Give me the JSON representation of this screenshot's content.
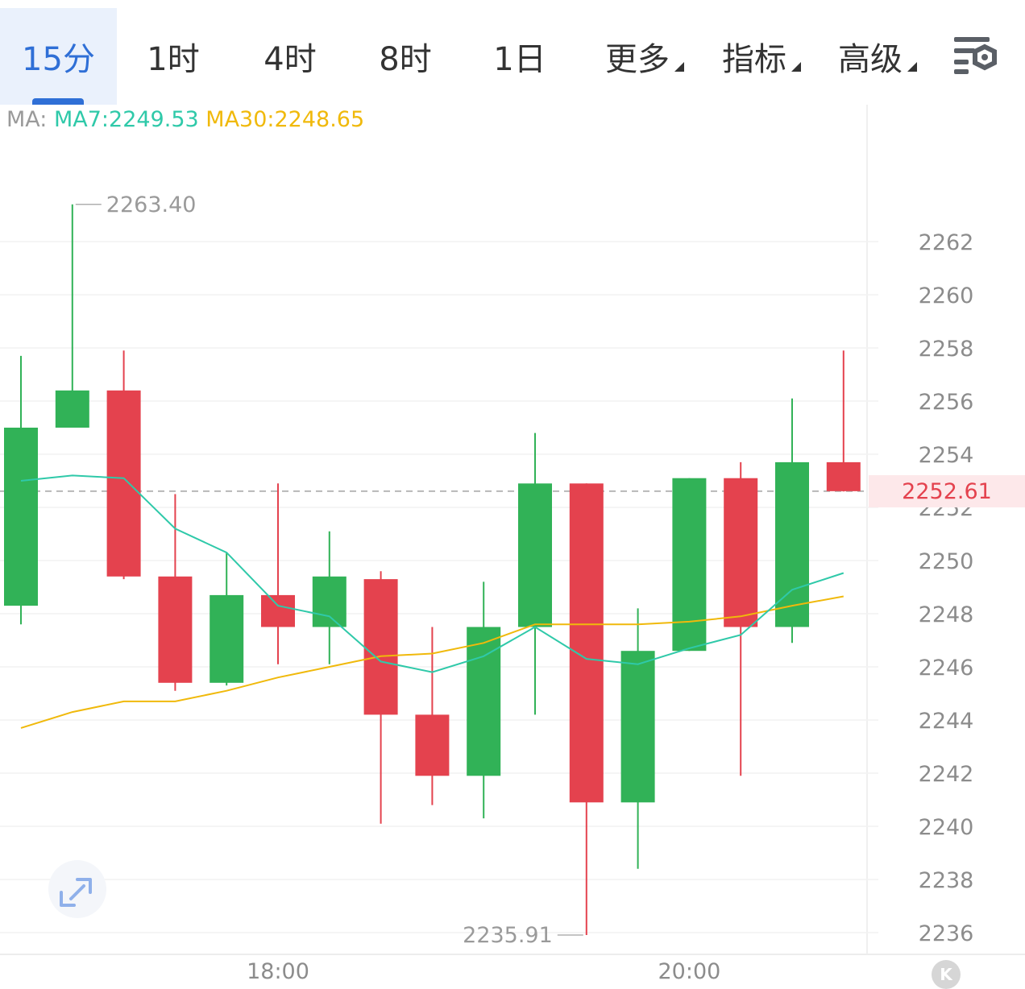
{
  "tabs": [
    {
      "label": "15分",
      "active": true
    },
    {
      "label": "1时"
    },
    {
      "label": "4时"
    },
    {
      "label": "8时"
    },
    {
      "label": "1日"
    },
    {
      "label": "更多",
      "dropdown": true
    },
    {
      "label": "指标",
      "dropdown": true
    },
    {
      "label": "高级",
      "dropdown": true
    }
  ],
  "settings_icon": "chart-settings-icon",
  "ma_legend": {
    "prefix": "MA:",
    "ma7": "MA7:2249.53",
    "ma30": "MA30:2248.65"
  },
  "current_price": "2252.61",
  "high_marker": "2263.40",
  "low_marker": "2235.91",
  "colors": {
    "up": "#31b257",
    "down": "#e4424e",
    "ma7": "#2fc9a9",
    "ma30": "#f0b90b",
    "accent": "#2f6fd6"
  },
  "k_logo": "K",
  "chart_data": {
    "type": "candlestick",
    "y_ticks": [
      2262,
      2260,
      2258,
      2256,
      2254,
      2252,
      2250,
      2248,
      2246,
      2244,
      2242,
      2240,
      2238,
      2236
    ],
    "x_labels": [
      {
        "label": "18:00",
        "index": 5
      },
      {
        "label": "20:00",
        "index": 13
      }
    ],
    "candles": [
      {
        "open": 2248.3,
        "high": 2257.7,
        "low": 2247.6,
        "close": 2255.0
      },
      {
        "open": 2255.0,
        "high": 2263.4,
        "low": 2255.0,
        "close": 2256.4
      },
      {
        "open": 2256.4,
        "high": 2257.9,
        "low": 2249.3,
        "close": 2249.4
      },
      {
        "open": 2249.4,
        "high": 2252.5,
        "low": 2245.1,
        "close": 2245.4
      },
      {
        "open": 2245.4,
        "high": 2250.3,
        "low": 2245.3,
        "close": 2248.7
      },
      {
        "open": 2248.7,
        "high": 2252.9,
        "low": 2246.1,
        "close": 2247.5
      },
      {
        "open": 2247.5,
        "high": 2251.1,
        "low": 2246.1,
        "close": 2249.4
      },
      {
        "open": 2249.3,
        "high": 2249.6,
        "low": 2240.1,
        "close": 2244.2
      },
      {
        "open": 2244.2,
        "high": 2247.5,
        "low": 2240.8,
        "close": 2241.9
      },
      {
        "open": 2241.9,
        "high": 2249.2,
        "low": 2240.3,
        "close": 2247.5
      },
      {
        "open": 2247.5,
        "high": 2254.8,
        "low": 2244.2,
        "close": 2252.9
      },
      {
        "open": 2252.9,
        "high": 2252.9,
        "low": 2235.91,
        "close": 2240.9
      },
      {
        "open": 2240.9,
        "high": 2248.2,
        "low": 2238.4,
        "close": 2246.6
      },
      {
        "open": 2246.6,
        "high": 2253.1,
        "low": 2246.6,
        "close": 2253.1
      },
      {
        "open": 2253.1,
        "high": 2253.7,
        "low": 2241.9,
        "close": 2247.5
      },
      {
        "open": 2247.5,
        "high": 2256.1,
        "low": 2246.9,
        "close": 2253.7
      },
      {
        "open": 2253.7,
        "high": 2257.9,
        "low": 2252.6,
        "close": 2252.61
      }
    ],
    "ma7": [
      2253.0,
      2253.2,
      2253.1,
      2251.2,
      2250.3,
      2248.3,
      2247.9,
      2246.2,
      2245.8,
      2246.4,
      2247.5,
      2246.3,
      2246.1,
      2246.7,
      2247.2,
      2248.9,
      2249.53
    ],
    "ma30": [
      2243.7,
      2244.3,
      2244.7,
      2244.7,
      2245.1,
      2245.6,
      2246.0,
      2246.4,
      2246.5,
      2246.9,
      2247.6,
      2247.6,
      2247.6,
      2247.7,
      2247.9,
      2248.3,
      2248.65
    ]
  }
}
